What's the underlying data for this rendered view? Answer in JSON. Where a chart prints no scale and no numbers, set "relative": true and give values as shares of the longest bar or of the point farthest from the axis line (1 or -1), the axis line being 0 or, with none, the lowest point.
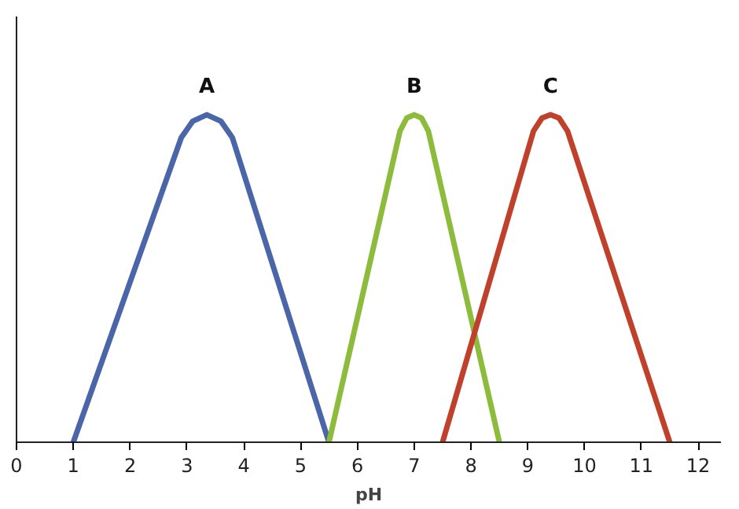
{
  "chart_data": {
    "type": "line",
    "relative": true,
    "xlabel": "pH",
    "xlim": [
      0,
      12.4
    ],
    "xticks": [
      0,
      1,
      2,
      3,
      4,
      5,
      6,
      7,
      8,
      9,
      10,
      11,
      12
    ],
    "tick_labels": "x",
    "grid": false,
    "line_style": "solid",
    "marker": "none",
    "series": [
      {
        "name": "A",
        "color": "#4a65a8",
        "x": [
          1,
          2.9,
          3.1,
          3.35,
          3.6,
          3.8,
          5.5
        ],
        "values": [
          0,
          0.93,
          0.98,
          1,
          0.98,
          0.93,
          0
        ]
      },
      {
        "name": "B",
        "color": "#8dbb3c",
        "x": [
          5.5,
          6.75,
          6.87,
          7.0,
          7.13,
          7.25,
          8.5
        ],
        "values": [
          0,
          0.95,
          0.99,
          1,
          0.99,
          0.95,
          0
        ]
      },
      {
        "name": "C",
        "color": "#c0412b",
        "x": [
          7.5,
          9.1,
          9.25,
          9.4,
          9.55,
          9.7,
          11.5
        ],
        "values": [
          0,
          0.95,
          0.99,
          1,
          0.99,
          0.95,
          0
        ]
      }
    ]
  }
}
